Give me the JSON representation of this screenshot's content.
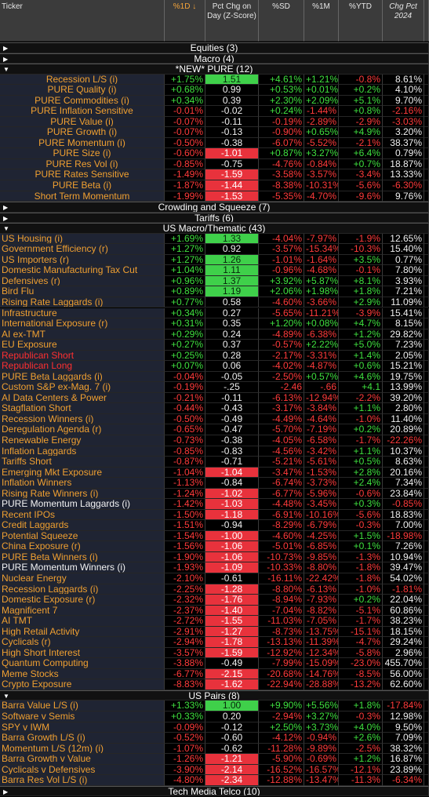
{
  "header": {
    "columns": [
      "Ticker",
      "%1D ↓",
      "Pct Chg on Day (Z-Score)",
      "%SD",
      "%1M",
      "%YTD",
      "Chg Pct 2024"
    ]
  },
  "sections": [
    {
      "title": "Equities (3)",
      "rows": []
    },
    {
      "title": "Macro (4)",
      "rows": []
    },
    {
      "title": "*NEW* PURE (12)",
      "rows": [
        [
          "Recession L/S (i)",
          "+1.75%",
          "1.51",
          "+4.61%",
          "+1.21%",
          "-0.8%",
          "8.61%"
        ],
        [
          "PURE Quality (i)",
          "+0.68%",
          "0.99",
          "+0.53%",
          "+0.01%",
          "+0.2%",
          "4.10%"
        ],
        [
          "PURE Commodities (i)",
          "+0.34%",
          "0.39",
          "+2.30%",
          "+2.09%",
          "+5.1%",
          "9.70%"
        ],
        [
          "PURE Inflation Sensitive",
          "-0.01%",
          "-0.02",
          "+0.24%",
          "-1.44%",
          "+0.8%",
          "-2.16%"
        ],
        [
          "PURE Value (i)",
          "-0.07%",
          "-0.11",
          "-0.19%",
          "-2.89%",
          "-2.9%",
          "-3.03%"
        ],
        [
          "PURE Growth (i)",
          "-0.07%",
          "-0.13",
          "-0.90%",
          "+0.65%",
          "+4.9%",
          "3.20%"
        ],
        [
          "PURE Momentum (i)",
          "-0.50%",
          "-0.38",
          "-6.07%",
          "-5.52%",
          "-2.1%",
          "38.37%"
        ],
        [
          "PURE Size (i)",
          "-0.60%",
          "-1.01",
          "+0.87%",
          "+3.27%",
          "+6.4%",
          "0.79%"
        ],
        [
          "PURE Res Vol (i)",
          "-0.85%",
          "-0.75",
          "-4.76%",
          "-0.84%",
          "+0.7%",
          "18.87%"
        ],
        [
          "PURE Rates Sensitive",
          "-1.49%",
          "-1.59",
          "-3.58%",
          "-3.57%",
          "-3.4%",
          "13.33%"
        ],
        [
          "PURE Beta (i)",
          "-1.87%",
          "-1.44",
          "-8.38%",
          "-10.31%",
          "-5.6%",
          "-6.30%"
        ],
        [
          "Short Term Momentum",
          "-1.99%",
          "-1.53",
          "-5.35%",
          "-4.70%",
          "-9.6%",
          "9.76%"
        ]
      ]
    },
    {
      "title": "Crowding and Squeeze (7)",
      "rows": []
    },
    {
      "title": "Tariffs (6)",
      "rows": []
    },
    {
      "title": "US Macro/Thematic (43)",
      "rows": [
        [
          "US Housing (i)",
          "+1.69%",
          "1.33",
          "-4.04%",
          "-7.97%",
          "-1.9%",
          "12.65%"
        ],
        [
          "Government Efficiency (r)",
          "+1.27%",
          "0.92",
          "-3.57%",
          "-15.34%",
          "-10.3%",
          "15.40%"
        ],
        [
          "US Importers (r)",
          "+1.27%",
          "1.26",
          "-1.01%",
          "-1.64%",
          "+3.5%",
          "0.77%"
        ],
        [
          "Domestic Manufacturing Tax Cut",
          "+1.04%",
          "1.11",
          "-0.96%",
          "-4.68%",
          "-0.1%",
          "7.80%"
        ],
        [
          "Defensives (r)",
          "+0.96%",
          "1.37",
          "+3.92%",
          "+5.87%",
          "+8.1%",
          "3.93%"
        ],
        [
          "Bird Flu",
          "+0.89%",
          "1.19",
          "+2.06%",
          "+1.98%",
          "+1.8%",
          "7.21%"
        ],
        [
          "Rising Rate Laggards (i)",
          "+0.77%",
          "0.58",
          "-4.60%",
          "-3.66%",
          "+2.9%",
          "11.09%"
        ],
        [
          "Infrastructure",
          "+0.34%",
          "0.27",
          "-5.65%",
          "-11.21%",
          "-3.9%",
          "15.41%"
        ],
        [
          "International Exposure (r)",
          "+0.31%",
          "0.35",
          "+1.20%",
          "+0.08%",
          "+4.7%",
          "8.15%"
        ],
        [
          "AI ex-TMT",
          "+0.29%",
          "0.24",
          "-4.89%",
          "-6.38%",
          "+1.2%",
          "29.82%"
        ],
        [
          "EU Exposure",
          "+0.27%",
          "0.37",
          "-0.57%",
          "+2.22%",
          "+5.0%",
          "7.23%"
        ],
        [
          "Republican Short",
          "+0.25%",
          "0.28",
          "-2.17%",
          "-3.31%",
          "+1.4%",
          "2.05%"
        ],
        [
          "Republican Long",
          "+0.07%",
          "0.06",
          "-4.02%",
          "-4.87%",
          "+0.6%",
          "15.21%"
        ],
        [
          "PURE Beta Laggards (i)",
          "-0.04%",
          "-0.05",
          "-2.50%",
          "+0.57%",
          "+4.6%",
          "19.75%"
        ],
        [
          "Custom S&P ex-Mag. 7 (i)",
          "-0.19%",
          "-.25",
          "-2.46",
          "-.66",
          "+4.1",
          "13.99%"
        ],
        [
          "AI Data Centers & Power",
          "-0.21%",
          "-0.11",
          "-6.13%",
          "-12.94%",
          "-2.2%",
          "39.20%"
        ],
        [
          "Stagflation Short",
          "-0.44%",
          "-0.43",
          "-3.17%",
          "-3.84%",
          "+1.1%",
          "2.80%"
        ],
        [
          "Recession Winners (i)",
          "-0.50%",
          "-0.49",
          "-4.49%",
          "-4.64%",
          "-1.0%",
          "11.40%"
        ],
        [
          "Deregulation Agenda (r)",
          "-0.65%",
          "-0.47",
          "-5.70%",
          "-7.19%",
          "+0.2%",
          "20.89%"
        ],
        [
          "Renewable Energy",
          "-0.73%",
          "-0.38",
          "-4.05%",
          "-6.58%",
          "-1.7%",
          "-22.26%"
        ],
        [
          "Inflation Laggards",
          "-0.85%",
          "-0.83",
          "-4.56%",
          "-3.42%",
          "+1.1%",
          "10.37%"
        ],
        [
          "Tariffs Short",
          "-0.87%",
          "-0.71",
          "-5.21%",
          "-5.61%",
          "+0.5%",
          "8.63%"
        ],
        [
          "Emerging Mkt Exposure",
          "-1.04%",
          "-1.04",
          "-3.47%",
          "-1.53%",
          "+2.8%",
          "20.16%"
        ],
        [
          "Inflation Winners",
          "-1.13%",
          "-0.84",
          "-6.74%",
          "-3.73%",
          "+2.4%",
          "7.34%"
        ],
        [
          "Rising Rate Winners (i)",
          "-1.24%",
          "-1.02",
          "-6.77%",
          "-5.96%",
          "-0.6%",
          "23.84%"
        ],
        [
          "PURE Momentum Laggards (i)",
          "-1.42%",
          "-1.03",
          "-4.48%",
          "-3.45%",
          "+0.3%",
          "-0.85%"
        ],
        [
          "Recent IPOs",
          "-1.50%",
          "-1.18",
          "-6.91%",
          "-10.16%",
          "-5.6%",
          "18.83%"
        ],
        [
          "Credit Laggards",
          "-1.51%",
          "-0.94",
          "-8.29%",
          "-6.79%",
          "-0.3%",
          "7.00%"
        ],
        [
          "Potential Squeeze",
          "-1.54%",
          "-1.00",
          "-4.60%",
          "-4.25%",
          "+1.5%",
          "-18.98%"
        ],
        [
          "China Exposure (r)",
          "-1.56%",
          "-1.06",
          "-5.01%",
          "-6.85%",
          "+0.1%",
          "7.26%"
        ],
        [
          "PURE Beta Winners (i)",
          "-1.90%",
          "-1.06",
          "-10.73%",
          "-9.85%",
          "-1.3%",
          "10.94%"
        ],
        [
          "PURE Momentum Winners (i)",
          "-1.93%",
          "-1.09",
          "-10.33%",
          "-8.80%",
          "-1.8%",
          "39.47%"
        ],
        [
          "Nuclear Energy",
          "-2.10%",
          "-0.61",
          "-16.11%",
          "-22.42%",
          "-1.8%",
          "54.02%"
        ],
        [
          "Recession Laggards (i)",
          "-2.25%",
          "-1.28",
          "-8.80%",
          "-6.13%",
          "-1.0%",
          "-1.81%"
        ],
        [
          "Domestic Exposure (r)",
          "-2.32%",
          "-1.76",
          "-8.94%",
          "-7.93%",
          "+0.2%",
          "22.04%"
        ],
        [
          "Magnificent 7",
          "-2.37%",
          "-1.40",
          "-7.04%",
          "-8.82%",
          "-5.1%",
          "60.86%"
        ],
        [
          "AI TMT",
          "-2.72%",
          "-1.55",
          "-11.03%",
          "-7.05%",
          "-1.7%",
          "38.23%"
        ],
        [
          "High Retail Activity",
          "-2.91%",
          "-1.27",
          "-8.73%",
          "-13.75%",
          "-15.1%",
          "18.15%"
        ],
        [
          "Cyclicals (r)",
          "-2.94%",
          "-1.78",
          "-13.13%",
          "-11.39%",
          "-4.7%",
          "29.24%"
        ],
        [
          "High Short Interest",
          "-3.57%",
          "-1.59",
          "-12.92%",
          "-12.34%",
          "-5.8%",
          "2.96%"
        ],
        [
          "Quantum Computing",
          "-3.88%",
          "-0.49",
          "-7.99%",
          "-15.09%",
          "-23.0%",
          "455.70%"
        ],
        [
          "Meme Stocks",
          "-6.77%",
          "-2.15",
          "-20.68%",
          "-14.76%",
          "-8.5%",
          "56.00%"
        ],
        [
          "Crypto Exposure",
          "-8.83%",
          "-1.62",
          "-22.94%",
          "-28.88%",
          "-13.2%",
          "62.60%"
        ]
      ]
    },
    {
      "title": "US Pairs (8)",
      "rows": [
        [
          "Barra Value L/S (i)",
          "+1.33%",
          "1.00",
          "+9.90%",
          "+5.56%",
          "+1.8%",
          "-17.84%"
        ],
        [
          "Software v Semis",
          "+0.33%",
          "0.20",
          "-2.94%",
          "+3.27%",
          "-0.3%",
          "12.98%"
        ],
        [
          "SPY v IWM",
          "-0.09%",
          "-0.12",
          "+2.50%",
          "+3.73%",
          "+4.0%",
          "9.50%"
        ],
        [
          "Barra Growth L/S (i)",
          "-0.52%",
          "-0.60",
          "-4.12%",
          "-0.94%",
          "+2.6%",
          "7.09%"
        ],
        [
          "Momentum L/S (12m) (i)",
          "-1.07%",
          "-0.62",
          "-11.28%",
          "-9.89%",
          "-2.5%",
          "38.32%"
        ],
        [
          "Barra Growth v Value",
          "-1.26%",
          "-1.21",
          "-5.90%",
          "-0.69%",
          "+1.2%",
          "16.87%"
        ],
        [
          "Cyclicals v Defensives",
          "-3.90%",
          "-2.14",
          "-16.52%",
          "-16.57%",
          "-12.1%",
          "23.89%"
        ],
        [
          "Barra Res Vol L/S (i)",
          "-4.80%",
          "-2.34",
          "-12.88%",
          "-13.47%",
          "-11.3%",
          "-6.34%"
        ]
      ]
    },
    {
      "title": "Tech Media Telco (10)",
      "rows": []
    }
  ]
}
